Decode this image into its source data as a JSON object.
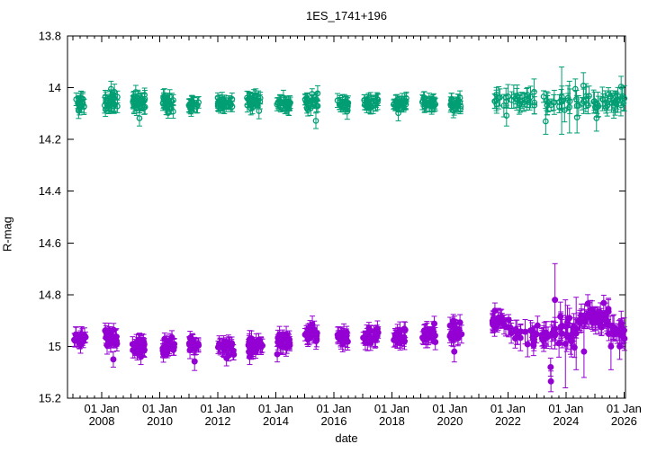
{
  "chart_data": {
    "type": "scatter",
    "title": "1ES_1741+196",
    "xlabel": "date",
    "ylabel": "R-mag",
    "background_color": "#ffffff",
    "axis_color": "#000000",
    "grid": false,
    "legend": "none",
    "x_axis": {
      "min_year": 2006.82,
      "max_year": 2026.05,
      "major_tick_years": [
        2008,
        2010,
        2012,
        2014,
        2016,
        2018,
        2020,
        2022,
        2024,
        2026
      ],
      "major_tick_labels": [
        {
          "line1": "01 Jan",
          "line2": "2008"
        },
        {
          "line1": "01 Jan",
          "line2": "2010"
        },
        {
          "line1": "01 Jan",
          "line2": "2012"
        },
        {
          "line1": "01 Jan",
          "line2": "2014"
        },
        {
          "line1": "01 Jan",
          "line2": "2016"
        },
        {
          "line1": "01 Jan",
          "line2": "2018"
        },
        {
          "line1": "01 Jan",
          "line2": "2020"
        },
        {
          "line1": "01 Jan",
          "line2": "2022"
        },
        {
          "line1": "01 Jan",
          "line2": "2024"
        },
        {
          "line1": "01 Jan",
          "line2": "2026"
        }
      ],
      "year_tick_step": 1,
      "minor_tick_step": 0.25
    },
    "y_axis": {
      "min": 13.8,
      "max": 15.2,
      "inverted_display": true,
      "ticks": [
        {
          "value": 13.8,
          "label": "13.8"
        },
        {
          "value": 14.0,
          "label": "14"
        },
        {
          "value": 14.2,
          "label": "14.2"
        },
        {
          "value": 14.4,
          "label": "14.4"
        },
        {
          "value": 14.6,
          "label": "14.6"
        },
        {
          "value": 14.8,
          "label": "14.8"
        },
        {
          "value": 15.0,
          "label": "15"
        },
        {
          "value": 15.2,
          "label": "15.2"
        }
      ]
    },
    "random_seed": 11,
    "cluster_format": [
      "x_start_year",
      "x_end_year",
      "n_points",
      "mean_mag",
      "sigma_mag",
      "err_min",
      "err_max"
    ],
    "outlier_format": [
      "year",
      "mag",
      "err"
    ],
    "series": [
      {
        "name": "green-open-circles",
        "approx_level_mag": 14.06,
        "color": "#009e73",
        "marker": "open-circle",
        "clusters": [
          [
            2007.05,
            2007.45,
            20,
            14.06,
            0.012,
            0.02,
            0.032
          ],
          [
            2008.1,
            2008.55,
            26,
            14.055,
            0.013,
            0.02,
            0.032
          ],
          [
            2009.05,
            2009.5,
            28,
            14.052,
            0.016,
            0.02,
            0.035
          ],
          [
            2010.1,
            2010.5,
            22,
            14.06,
            0.012,
            0.02,
            0.032
          ],
          [
            2011.0,
            2011.35,
            18,
            14.065,
            0.01,
            0.02,
            0.03
          ],
          [
            2012.0,
            2012.55,
            26,
            14.06,
            0.011,
            0.018,
            0.03
          ],
          [
            2013.0,
            2013.55,
            26,
            14.056,
            0.012,
            0.018,
            0.03
          ],
          [
            2014.0,
            2014.5,
            24,
            14.06,
            0.012,
            0.018,
            0.03
          ],
          [
            2015.0,
            2015.45,
            22,
            14.056,
            0.013,
            0.018,
            0.03
          ],
          [
            2016.1,
            2016.5,
            20,
            14.064,
            0.01,
            0.018,
            0.03
          ],
          [
            2017.0,
            2017.55,
            26,
            14.06,
            0.011,
            0.018,
            0.03
          ],
          [
            2018.05,
            2018.5,
            24,
            14.06,
            0.011,
            0.018,
            0.03
          ],
          [
            2019.05,
            2019.5,
            24,
            14.056,
            0.012,
            0.018,
            0.03
          ],
          [
            2020.0,
            2020.4,
            20,
            14.06,
            0.011,
            0.018,
            0.03
          ],
          [
            2021.45,
            2026.02,
            85,
            14.05,
            0.017,
            0.02,
            0.05
          ]
        ],
        "outliers": [
          [
            2008.32,
            14.005,
            0.03
          ],
          [
            2009.3,
            14.118,
            0.03
          ],
          [
            2010.46,
            14.092,
            0.026
          ],
          [
            2013.42,
            14.09,
            0.03
          ],
          [
            2015.38,
            14.128,
            0.03
          ],
          [
            2016.46,
            14.092,
            0.03
          ],
          [
            2018.22,
            14.098,
            0.03
          ],
          [
            2021.95,
            14.108,
            0.04
          ],
          [
            2023.3,
            14.13,
            0.05
          ],
          [
            2023.85,
            14.05,
            0.13
          ],
          [
            2024.12,
            14.075,
            0.1
          ],
          [
            2024.38,
            14.115,
            0.06
          ],
          [
            2024.6,
            13.992,
            0.05
          ],
          [
            2025.05,
            14.118,
            0.05
          ],
          [
            2025.9,
            13.996,
            0.04
          ]
        ]
      },
      {
        "name": "purple-filled-circles",
        "approx_level_mag": 14.96,
        "color": "#9400d3",
        "marker": "filled-circle",
        "clusters": [
          [
            2007.05,
            2007.45,
            18,
            14.965,
            0.013,
            0.02,
            0.035
          ],
          [
            2008.1,
            2008.55,
            24,
            14.962,
            0.015,
            0.02,
            0.035
          ],
          [
            2009.05,
            2009.5,
            26,
            15.0,
            0.017,
            0.02,
            0.035
          ],
          [
            2010.1,
            2010.5,
            22,
            15.0,
            0.015,
            0.02,
            0.035
          ],
          [
            2011.0,
            2011.35,
            16,
            14.992,
            0.014,
            0.02,
            0.035
          ],
          [
            2012.0,
            2012.55,
            26,
            15.008,
            0.016,
            0.02,
            0.035
          ],
          [
            2013.0,
            2013.55,
            24,
            15.0,
            0.015,
            0.02,
            0.035
          ],
          [
            2014.0,
            2014.5,
            24,
            14.978,
            0.016,
            0.02,
            0.035
          ],
          [
            2015.0,
            2015.45,
            22,
            14.952,
            0.015,
            0.02,
            0.035
          ],
          [
            2016.1,
            2016.5,
            20,
            14.962,
            0.013,
            0.02,
            0.035
          ],
          [
            2017.0,
            2017.55,
            26,
            14.965,
            0.014,
            0.02,
            0.035
          ],
          [
            2018.05,
            2018.5,
            24,
            14.962,
            0.013,
            0.02,
            0.035
          ],
          [
            2019.05,
            2019.5,
            24,
            14.95,
            0.015,
            0.02,
            0.035
          ],
          [
            2020.0,
            2020.4,
            20,
            14.945,
            0.018,
            0.022,
            0.04
          ],
          [
            2021.45,
            2022.1,
            24,
            14.905,
            0.015,
            0.02,
            0.04
          ],
          [
            2022.1,
            2023.4,
            30,
            14.955,
            0.018,
            0.022,
            0.05
          ],
          [
            2023.45,
            2024.4,
            26,
            14.95,
            0.028,
            0.03,
            0.07
          ],
          [
            2024.45,
            2025.5,
            40,
            14.895,
            0.02,
            0.02,
            0.05
          ],
          [
            2025.5,
            2026.02,
            18,
            14.94,
            0.02,
            0.025,
            0.05
          ]
        ],
        "outliers": [
          [
            2008.4,
            15.05,
            0.03
          ],
          [
            2009.35,
            15.04,
            0.03
          ],
          [
            2011.2,
            15.058,
            0.035
          ],
          [
            2012.3,
            15.045,
            0.03
          ],
          [
            2013.1,
            15.04,
            0.03
          ],
          [
            2014.05,
            15.03,
            0.03
          ],
          [
            2020.15,
            15.02,
            0.04
          ],
          [
            2021.55,
            14.862,
            0.03
          ],
          [
            2023.47,
            15.08,
            0.035
          ],
          [
            2023.48,
            15.135,
            0.04
          ],
          [
            2023.62,
            14.82,
            0.14
          ],
          [
            2023.98,
            14.99,
            0.17
          ],
          [
            2024.35,
            14.95,
            0.14
          ],
          [
            2024.62,
            15.02,
            0.1
          ],
          [
            2024.75,
            14.835,
            0.035
          ],
          [
            2025.3,
            14.832,
            0.03
          ],
          [
            2025.55,
            15.0,
            0.09
          ],
          [
            2025.85,
            15.0,
            0.05
          ]
        ]
      }
    ]
  }
}
